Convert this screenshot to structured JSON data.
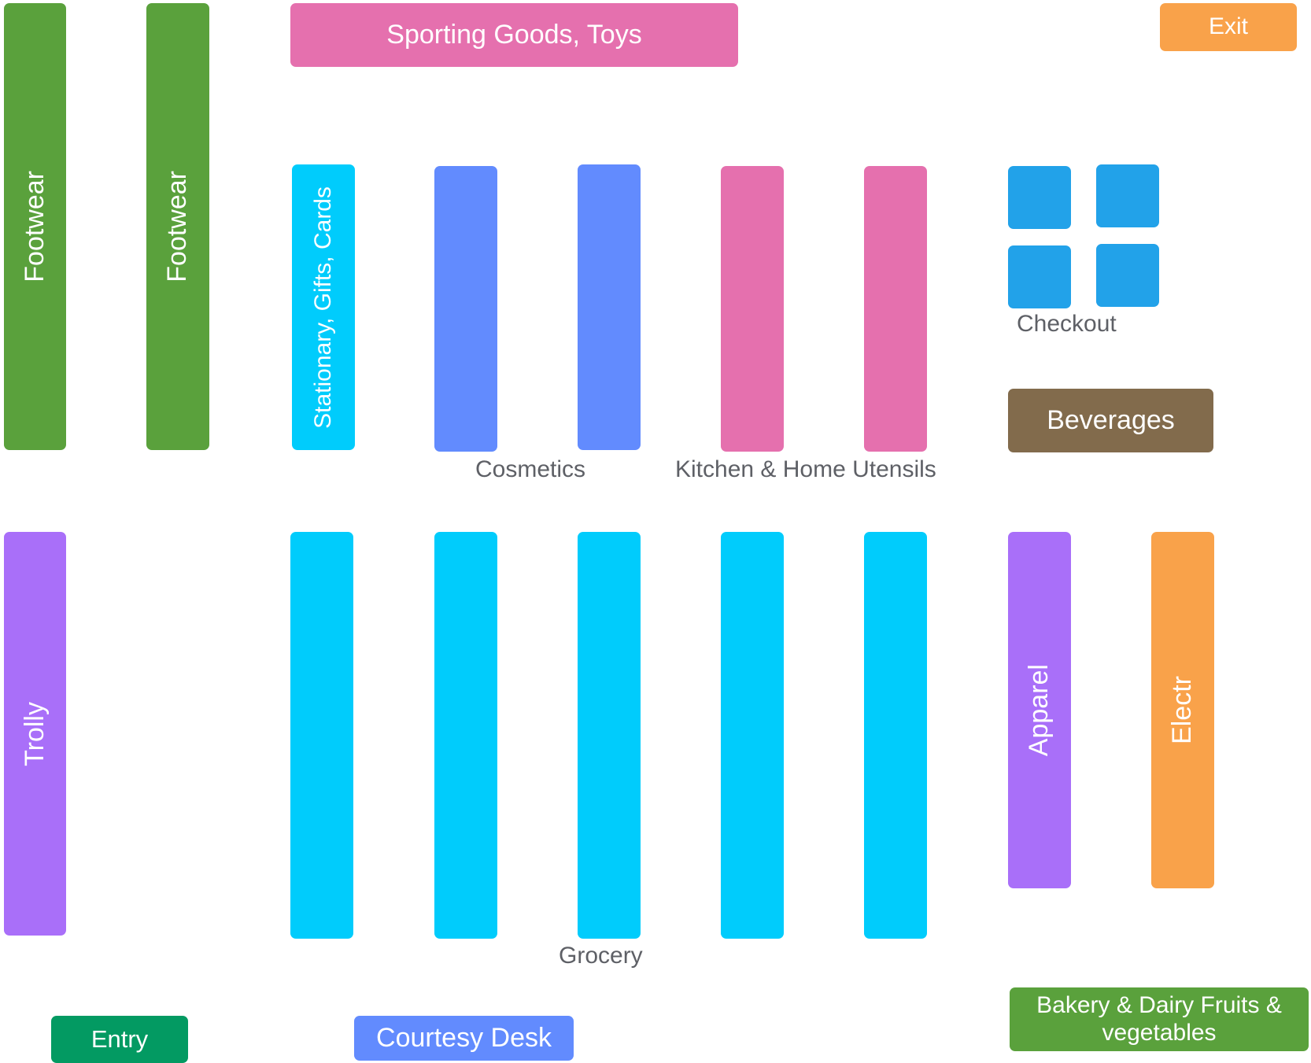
{
  "colors": {
    "green": "#5aa13c",
    "magenta": "#e570ae",
    "orange": "#f9a24a",
    "cyan": "#00ccfc",
    "periwinkle": "#628bfe",
    "blue": "#22a2e9",
    "brown": "#826b4c",
    "purple": "#a96ff9",
    "dark_green": "#039a62",
    "caption_gray": "#5e6066"
  },
  "labels": {
    "footwear_1": "Footwear",
    "footwear_2": "Footwear",
    "sporting_goods": "Sporting Goods, Toys",
    "exit": "Exit",
    "stationary": "Stationary, Gifts, Cards",
    "checkout": "Checkout",
    "beverages": "Beverages",
    "cosmetics": "Cosmetics",
    "kitchen": "Kitchen & Home Utensils",
    "trolly": "Trolly",
    "apparel": "Apparel",
    "electronics": "Electr",
    "grocery": "Grocery",
    "entry": "Entry",
    "courtesy_desk": "Courtesy Desk",
    "bakery": "Bakery & Dairy Fruits & vegetables"
  }
}
